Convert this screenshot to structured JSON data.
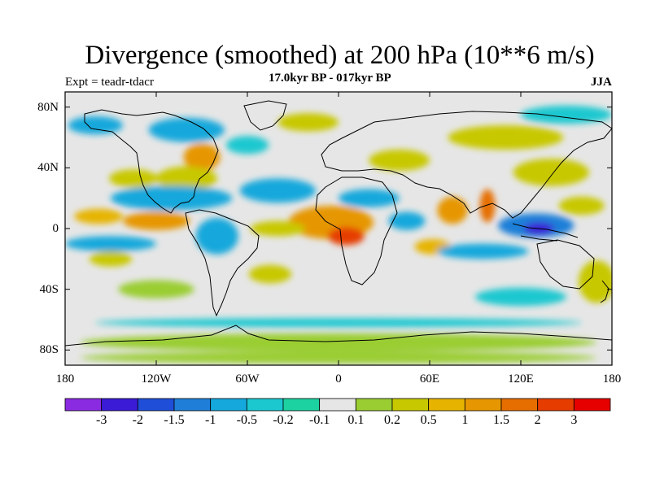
{
  "title": "Divergence (smoothed) at 200 hPa (10**6 m/s)",
  "subtitle_left": "Expt = teadr-tdacr",
  "subtitle_center": "17.0kyr BP - 017kyr BP",
  "subtitle_right": "JJA",
  "map": {
    "lon_range": [
      -180,
      180
    ],
    "lat_range": [
      -90,
      90
    ],
    "lat_labels": [
      "80N",
      "40N",
      "0",
      "40S",
      "80S"
    ],
    "lon_labels": [
      "180",
      "120W",
      "60W",
      "0",
      "60E",
      "120E",
      "180"
    ],
    "background_color": "#e6e6e6"
  },
  "colorbar": {
    "labels": [
      "-3",
      "-2",
      "-1.5",
      "-1",
      "-0.5",
      "-0.2",
      "-0.1",
      "0.1",
      "0.2",
      "0.5",
      "1",
      "1.5",
      "2",
      "3"
    ],
    "colors": [
      "#8a2be2",
      "#3b1bd6",
      "#1f4fd8",
      "#1f7fd8",
      "#14a8dc",
      "#1cc8d0",
      "#1cd2a0",
      "#e6e6e6",
      "#9acd32",
      "#c8c800",
      "#e6b400",
      "#e69600",
      "#e66e00",
      "#e63c00",
      "#e60000"
    ]
  },
  "field_patches": [
    {
      "lon": -120,
      "lat": 5,
      "rx": 22,
      "ry": 6,
      "value": 1.5
    },
    {
      "lon": -158,
      "lat": 8,
      "rx": 16,
      "ry": 5,
      "value": 1
    },
    {
      "lon": -90,
      "lat": 47,
      "rx": 12,
      "ry": 9,
      "value": 1.5
    },
    {
      "lon": -100,
      "lat": 33,
      "rx": 20,
      "ry": 8,
      "value": 0.5
    },
    {
      "lon": -135,
      "lat": 33,
      "rx": 16,
      "ry": 6,
      "value": 0.5
    },
    {
      "lon": -5,
      "lat": 4,
      "rx": 28,
      "ry": 11,
      "value": 1.5
    },
    {
      "lon": 5,
      "lat": -5,
      "rx": 12,
      "ry": 6,
      "value": 3
    },
    {
      "lon": -40,
      "lat": 0,
      "rx": 18,
      "ry": 5,
      "value": 0.5
    },
    {
      "lon": 75,
      "lat": 12,
      "rx": 10,
      "ry": 9,
      "value": 1.5
    },
    {
      "lon": 98,
      "lat": 15,
      "rx": 5,
      "ry": 11,
      "value": 2
    },
    {
      "lon": 62,
      "lat": -12,
      "rx": 12,
      "ry": 5,
      "value": 1
    },
    {
      "lon": 140,
      "lat": 37,
      "rx": 25,
      "ry": 9,
      "value": 0.5
    },
    {
      "lon": 110,
      "lat": 60,
      "rx": 38,
      "ry": 8,
      "value": 0.5
    },
    {
      "lon": -20,
      "lat": 70,
      "rx": 20,
      "ry": 6,
      "value": 0.5
    },
    {
      "lon": 0,
      "lat": -75,
      "rx": 170,
      "ry": 6,
      "value": 0.2
    },
    {
      "lon": 0,
      "lat": -85,
      "rx": 170,
      "ry": 4,
      "value": 0.2
    },
    {
      "lon": 170,
      "lat": -35,
      "rx": 12,
      "ry": 14,
      "value": 0.5
    },
    {
      "lon": -150,
      "lat": -20,
      "rx": 14,
      "ry": 5,
      "value": 0.5
    },
    {
      "lon": -120,
      "lat": -40,
      "rx": 25,
      "ry": 6,
      "value": 0.2
    },
    {
      "lon": 160,
      "lat": 15,
      "rx": 15,
      "ry": 6,
      "value": 0.5
    },
    {
      "lon": -45,
      "lat": -30,
      "rx": 14,
      "ry": 6,
      "value": 0.5
    },
    {
      "lon": 40,
      "lat": 45,
      "rx": 20,
      "ry": 7,
      "value": 0.5
    },
    {
      "lon": -110,
      "lat": 20,
      "rx": 40,
      "ry": 8,
      "value": -0.5
    },
    {
      "lon": -150,
      "lat": -10,
      "rx": 30,
      "ry": 5,
      "value": -0.5
    },
    {
      "lon": -80,
      "lat": -5,
      "rx": 14,
      "ry": 12,
      "value": -0.5
    },
    {
      "lon": -40,
      "lat": 25,
      "rx": 25,
      "ry": 8,
      "value": -0.5
    },
    {
      "lon": 20,
      "lat": 20,
      "rx": 20,
      "ry": 6,
      "value": -0.5
    },
    {
      "lon": 130,
      "lat": 2,
      "rx": 25,
      "ry": 8,
      "value": -1
    },
    {
      "lon": 132,
      "lat": 0,
      "rx": 10,
      "ry": 4,
      "value": -2
    },
    {
      "lon": 45,
      "lat": 5,
      "rx": 12,
      "ry": 6,
      "value": -0.5
    },
    {
      "lon": 95,
      "lat": -15,
      "rx": 30,
      "ry": 5,
      "value": -0.5
    },
    {
      "lon": -100,
      "lat": 65,
      "rx": 25,
      "ry": 8,
      "value": -0.5
    },
    {
      "lon": 150,
      "lat": 75,
      "rx": 30,
      "ry": 6,
      "value": -0.2
    },
    {
      "lon": -160,
      "lat": 68,
      "rx": 18,
      "ry": 6,
      "value": -0.5
    },
    {
      "lon": 0,
      "lat": -62,
      "rx": 160,
      "ry": 3,
      "value": -0.2
    },
    {
      "lon": 120,
      "lat": -45,
      "rx": 30,
      "ry": 6,
      "value": -0.2
    },
    {
      "lon": -60,
      "lat": 55,
      "rx": 14,
      "ry": 6,
      "value": -0.2
    }
  ]
}
